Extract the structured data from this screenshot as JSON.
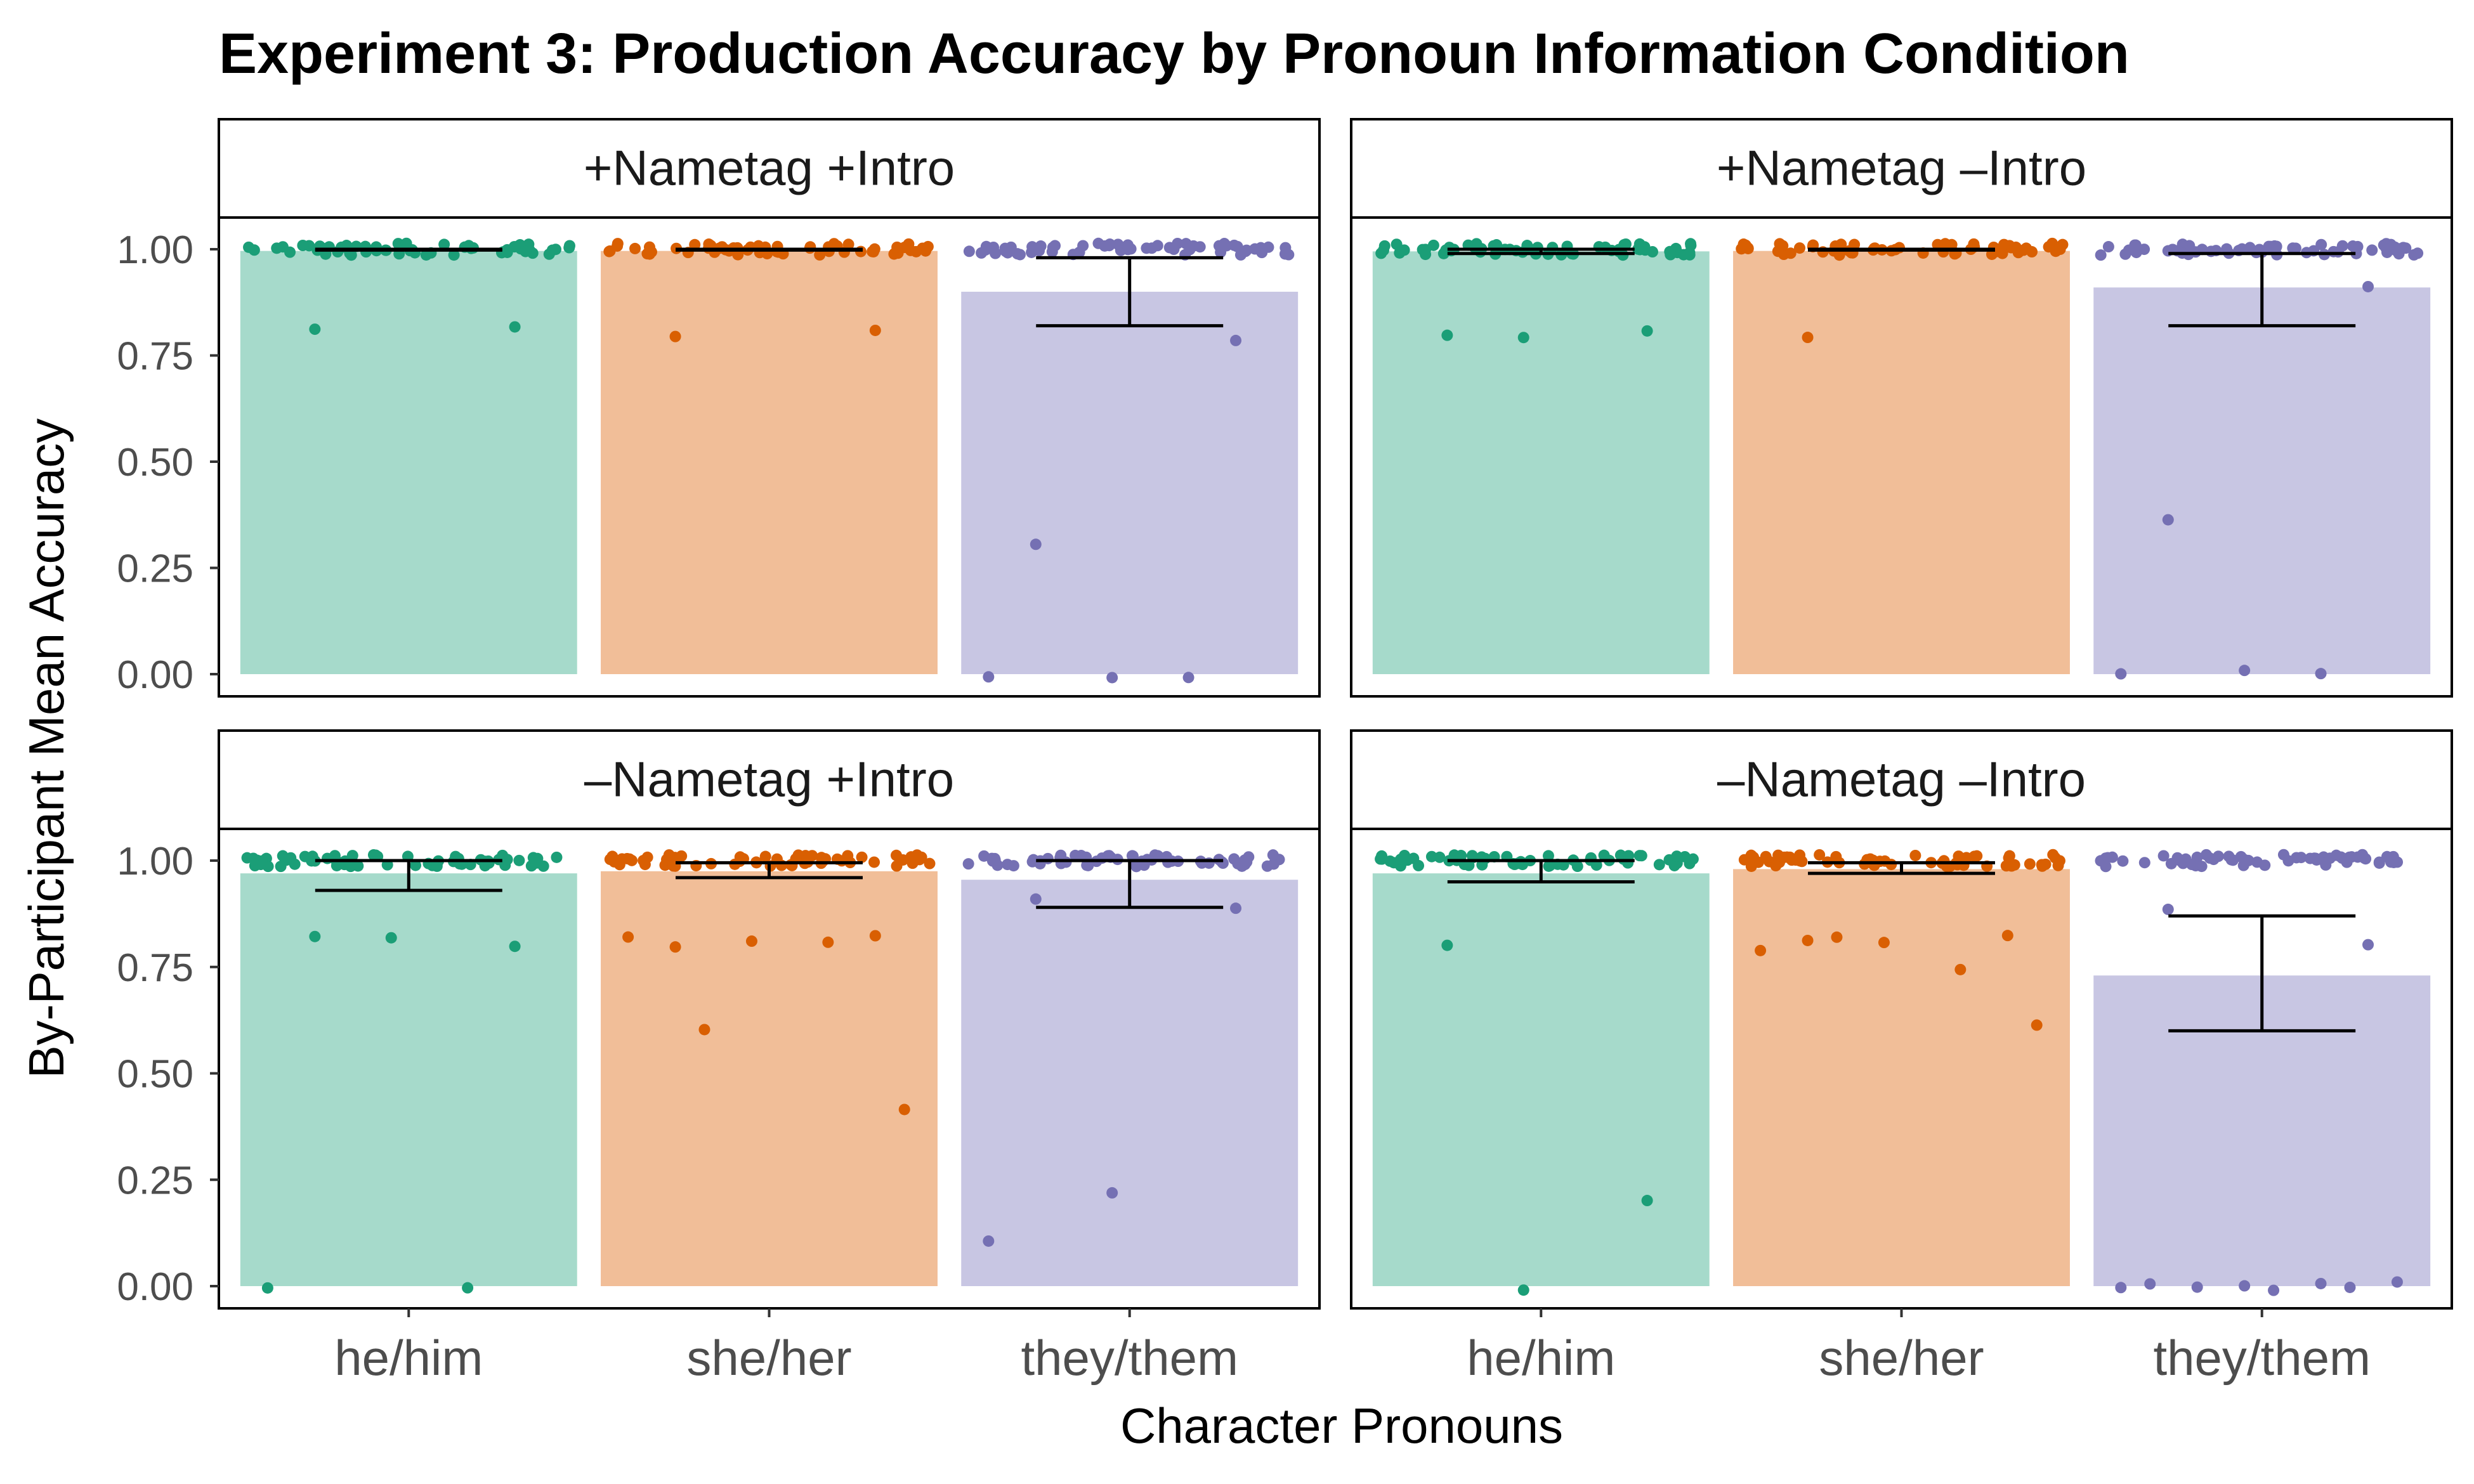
{
  "chart_data": {
    "type": "bar",
    "title": "Experiment 3: Production Accuracy by Pronoun Information Condition",
    "xlabel": "Character Pronouns",
    "ylabel": "By-Participant Mean Accuracy",
    "categories": [
      "he/him",
      "she/her",
      "they/them"
    ],
    "ylim": [
      0,
      1
    ],
    "yticks": [
      "0.00",
      "0.25",
      "0.50",
      "0.75",
      "1.00"
    ],
    "colors": {
      "he/him": {
        "bar": "#a6dacb",
        "point": "#1b9e77"
      },
      "she/her": {
        "bar": "#f1be98",
        "point": "#d95f02"
      },
      "they/them": {
        "bar": "#c8c6e3",
        "point": "#7570b3"
      }
    },
    "grid": false,
    "legend": "none",
    "panels": [
      {
        "label": "+Nametag +Intro",
        "means": [
          0.996,
          0.996,
          0.9
        ],
        "ci_low": [
          0.998,
          0.998,
          0.82
        ],
        "ci_high": [
          1.0,
          1.0,
          0.98
        ],
        "outliers": [
          [
            0.81,
            0.81
          ],
          [
            0.79,
            0.8
          ],
          [
            0.31,
            0.79,
            0.0,
            0.0,
            0.0
          ]
        ]
      },
      {
        "label": "+Nametag –Intro",
        "means": [
          0.995,
          0.996,
          0.91
        ],
        "ci_low": [
          0.99,
          0.998,
          0.82
        ],
        "ci_high": [
          1.0,
          1.0,
          0.99
        ],
        "outliers": [
          [
            0.8,
            0.81,
            0.8
          ],
          [
            0.79
          ],
          [
            0.37,
            0.91,
            0.0,
            0.0,
            0.0
          ]
        ]
      },
      {
        "label": "–Nametag +Intro",
        "means": [
          0.97,
          0.975,
          0.955
        ],
        "ci_low": [
          0.93,
          0.96,
          0.89
        ],
        "ci_high": [
          1.0,
          0.995,
          1.0
        ],
        "outliers": [
          [
            0.82,
            0.8,
            0.81,
            0.0,
            0.0
          ],
          [
            0.79,
            0.82,
            0.81,
            0.82,
            0.81,
            0.6,
            0.41
          ],
          [
            0.91,
            0.89,
            0.21,
            0.1
          ]
        ]
      },
      {
        "label": "–Nametag –Intro",
        "means": [
          0.97,
          0.98,
          0.73
        ],
        "ci_low": [
          0.95,
          0.97,
          0.6
        ],
        "ci_high": [
          1.0,
          0.995,
          0.87
        ],
        "outliers": [
          [
            0.81,
            0.21,
            0.0
          ],
          [
            0.81,
            0.82,
            0.81,
            0.79,
            0.75,
            0.81,
            0.62
          ],
          [
            0.89,
            0.8,
            0.0,
            0.0,
            0.0,
            0.0,
            0.0,
            0.0,
            0.0,
            0.0
          ]
        ]
      }
    ]
  }
}
